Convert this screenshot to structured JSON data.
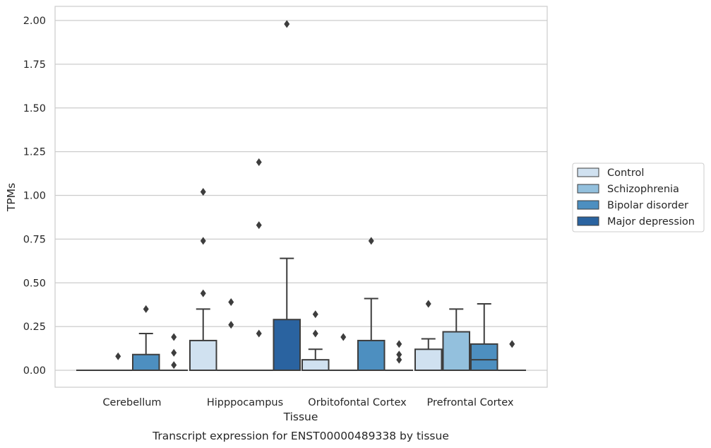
{
  "chart_data": {
    "type": "boxplot",
    "xlabel": "Tissue",
    "ylabel": "TPMs",
    "caption": "Transcript expression for ENST00000489338 by tissue",
    "ylim": [
      -0.1,
      2.08
    ],
    "yticks": [
      0.0,
      0.25,
      0.5,
      0.75,
      1.0,
      1.25,
      1.5,
      1.75,
      2.0
    ],
    "ytick_labels": [
      "0.00",
      "0.25",
      "0.50",
      "0.75",
      "1.00",
      "1.25",
      "1.50",
      "1.75",
      "2.00"
    ],
    "grid": "horizontal",
    "legend_position": "right",
    "categories": [
      "Cerebellum",
      "Hipppocampus",
      "Orbitofontal Cortex",
      "Prefrontal Cortex"
    ],
    "series": [
      {
        "name": "Control",
        "color": "#d0e1f0",
        "boxes": [
          {
            "q1": 0,
            "median": 0,
            "q3": 0,
            "whislo": 0,
            "whishi": 0,
            "fliers": []
          },
          {
            "q1": 0,
            "median": 0,
            "q3": 0.17,
            "whislo": 0,
            "whishi": 0.35,
            "fliers": [
              0.44,
              0.74,
              1.02
            ]
          },
          {
            "q1": 0,
            "median": 0,
            "q3": 0.06,
            "whislo": 0,
            "whishi": 0.12,
            "fliers": [
              0.21,
              0.32
            ]
          },
          {
            "q1": 0,
            "median": 0,
            "q3": 0.12,
            "whislo": 0,
            "whishi": 0.18,
            "fliers": [
              0.38
            ]
          }
        ]
      },
      {
        "name": "Schizophrenia",
        "color": "#93c0dd",
        "boxes": [
          {
            "q1": 0,
            "median": 0,
            "q3": 0,
            "whislo": 0,
            "whishi": 0,
            "fliers": [
              0.08
            ]
          },
          {
            "q1": 0,
            "median": 0,
            "q3": 0,
            "whislo": 0,
            "whishi": 0,
            "fliers": [
              0.26,
              0.39
            ]
          },
          {
            "q1": 0,
            "median": 0,
            "q3": 0,
            "whislo": 0,
            "whishi": 0,
            "fliers": [
              0.19
            ]
          },
          {
            "q1": 0,
            "median": 0,
            "q3": 0.22,
            "whislo": 0,
            "whishi": 0.35,
            "fliers": []
          }
        ]
      },
      {
        "name": "Bipolar disorder",
        "color": "#4d8fc0",
        "boxes": [
          {
            "q1": 0,
            "median": 0,
            "q3": 0.09,
            "whislo": 0,
            "whishi": 0.21,
            "fliers": [
              0.35
            ]
          },
          {
            "q1": 0,
            "median": 0,
            "q3": 0,
            "whislo": 0,
            "whishi": 0,
            "fliers": [
              0.21,
              0.83,
              1.19
            ]
          },
          {
            "q1": 0,
            "median": 0,
            "q3": 0.17,
            "whislo": 0,
            "whishi": 0.41,
            "fliers": [
              0.74
            ]
          },
          {
            "q1": 0,
            "median": 0.06,
            "q3": 0.15,
            "whislo": 0,
            "whishi": 0.38,
            "fliers": []
          }
        ]
      },
      {
        "name": "Major depression",
        "color": "#2a63a0",
        "boxes": [
          {
            "q1": 0,
            "median": 0,
            "q3": 0,
            "whislo": 0,
            "whishi": 0,
            "fliers": [
              0.03,
              0.1,
              0.19
            ]
          },
          {
            "q1": 0,
            "median": 0,
            "q3": 0.29,
            "whislo": 0,
            "whishi": 0.64,
            "fliers": [
              1.98
            ]
          },
          {
            "q1": 0,
            "median": 0,
            "q3": 0,
            "whislo": 0,
            "whishi": 0,
            "fliers": [
              0.06,
              0.09,
              0.15
            ]
          },
          {
            "q1": 0,
            "median": 0,
            "q3": 0,
            "whislo": 0,
            "whishi": 0,
            "fliers": [
              0.15
            ]
          }
        ]
      }
    ]
  }
}
